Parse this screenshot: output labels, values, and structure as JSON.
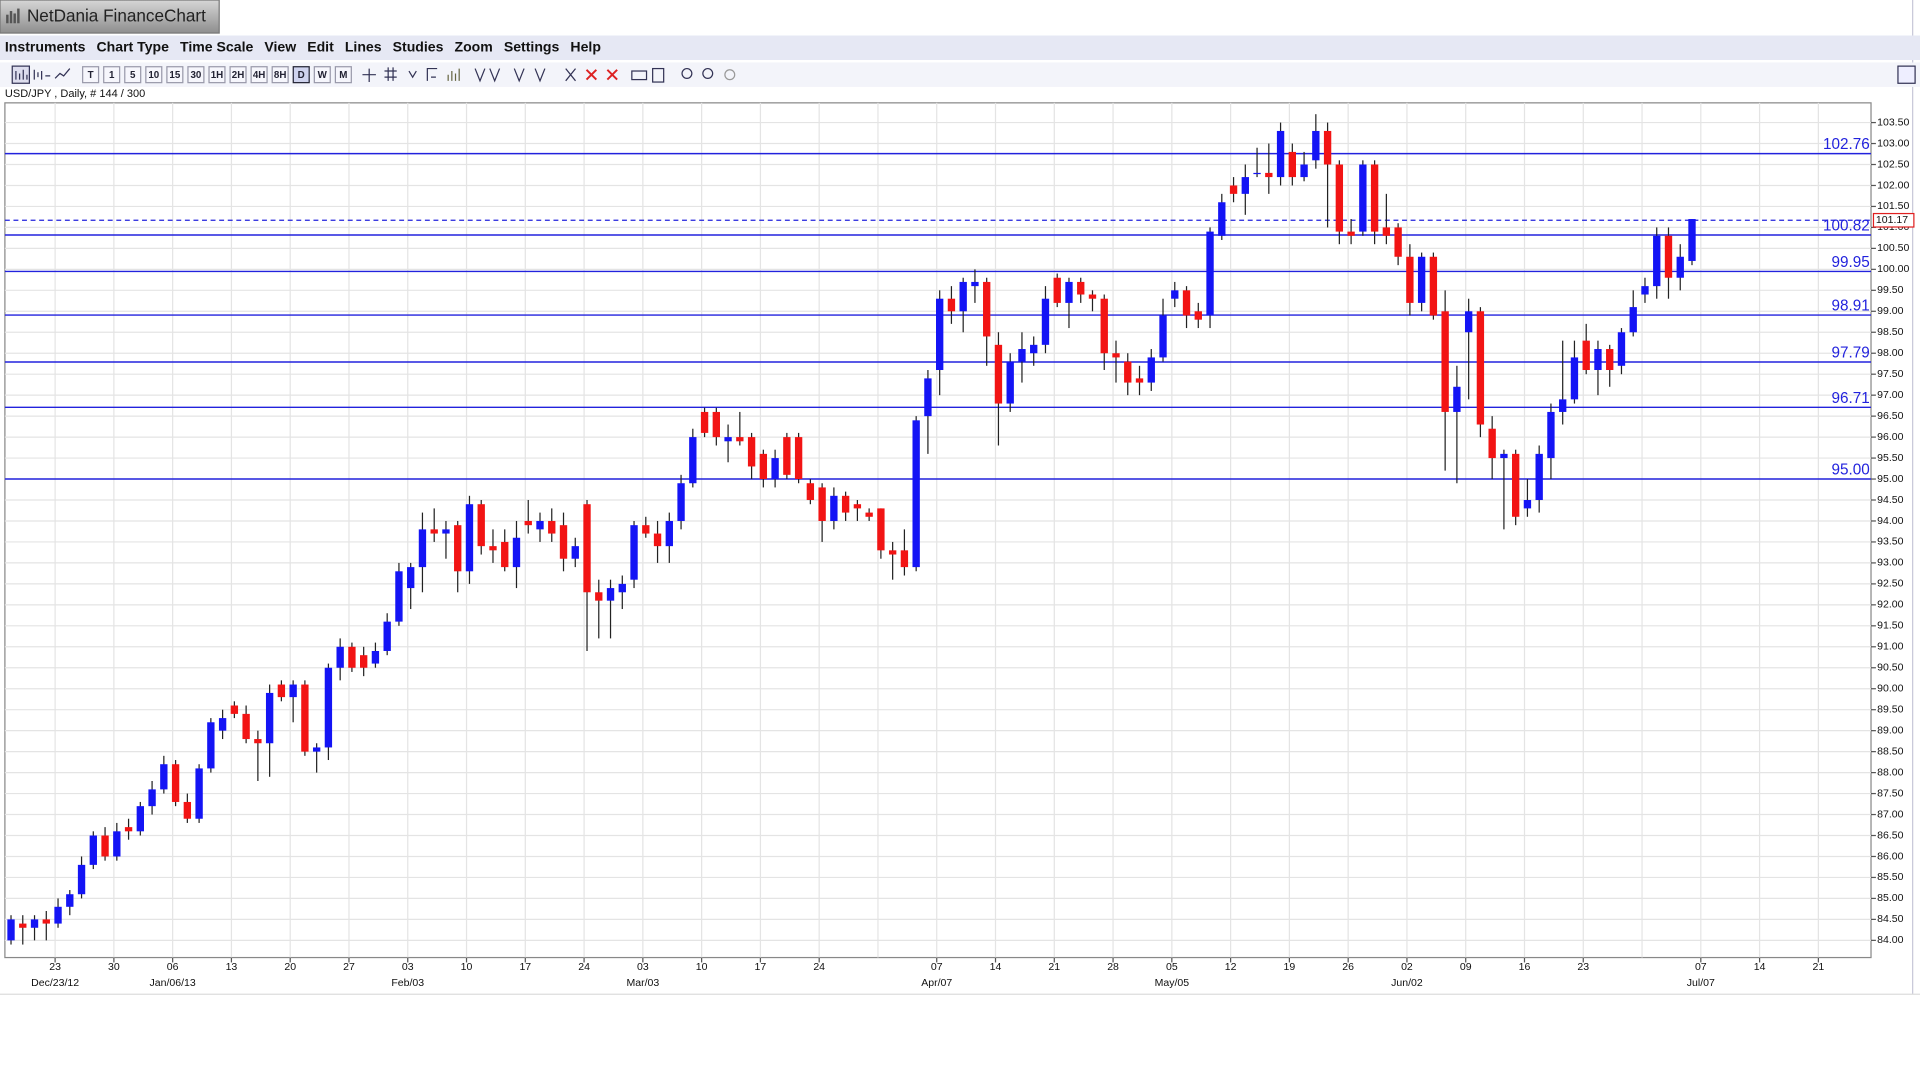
{
  "window": {
    "title": "NetDania FinanceChart",
    "menu": [
      "Instruments",
      "Chart Type",
      "Time Scale",
      "View",
      "Edit",
      "Lines",
      "Studies",
      "Zoom",
      "Settings",
      "Help"
    ],
    "timescales": [
      "T",
      "1",
      "5",
      "10",
      "15",
      "30",
      "1H",
      "2H",
      "4H",
      "8H",
      "D",
      "W",
      "M"
    ],
    "selected_timescale": "D"
  },
  "chart_data": {
    "type": "candlestick",
    "info": "USD/JPY , Daily, # 144 / 300",
    "up_color": "#1414f5",
    "down_color": "#f21414",
    "grid": true,
    "ylim": [
      83.59,
      103.97
    ],
    "yticks": [
      {
        "value": 84,
        "label": "84.00"
      },
      {
        "value": 84.5,
        "label": "84.50"
      },
      {
        "value": 85,
        "label": "85.00"
      },
      {
        "value": 85.5,
        "label": "85.50"
      },
      {
        "value": 86,
        "label": "86.00"
      },
      {
        "value": 86.5,
        "label": "86.50"
      },
      {
        "value": 87,
        "label": "87.00"
      },
      {
        "value": 87.5,
        "label": "87.50"
      },
      {
        "value": 88,
        "label": "88.00"
      },
      {
        "value": 88.5,
        "label": "88.50"
      },
      {
        "value": 89,
        "label": "89.00"
      },
      {
        "value": 89.5,
        "label": "89.50"
      },
      {
        "value": 90,
        "label": "90.00"
      },
      {
        "value": 90.5,
        "label": "90.50"
      },
      {
        "value": 91,
        "label": "91.00"
      },
      {
        "value": 91.5,
        "label": "91.50"
      },
      {
        "value": 92,
        "label": "92.00"
      },
      {
        "value": 92.5,
        "label": "92.50"
      },
      {
        "value": 93,
        "label": "93.00"
      },
      {
        "value": 93.5,
        "label": "93.50"
      },
      {
        "value": 94,
        "label": "94.00"
      },
      {
        "value": 94.5,
        "label": "94.50"
      },
      {
        "value": 95,
        "label": "95.00"
      },
      {
        "value": 95.5,
        "label": "95.50"
      },
      {
        "value": 96,
        "label": "96.00"
      },
      {
        "value": 96.5,
        "label": "96.50"
      },
      {
        "value": 97,
        "label": "97.00"
      },
      {
        "value": 97.5,
        "label": "97.50"
      },
      {
        "value": 98,
        "label": "98.00"
      },
      {
        "value": 98.5,
        "label": "98.50"
      },
      {
        "value": 99,
        "label": "99.00"
      },
      {
        "value": 99.5,
        "label": "99.50"
      },
      {
        "value": 100,
        "label": "100.00"
      },
      {
        "value": 100.5,
        "label": "100.50"
      },
      {
        "value": 101,
        "label": "101.00"
      },
      {
        "value": 101.5,
        "label": "101.50"
      },
      {
        "value": 102,
        "label": "102.00"
      },
      {
        "value": 102.5,
        "label": "102.50"
      },
      {
        "value": 103,
        "label": "103.00"
      },
      {
        "value": 103.5,
        "label": "103.50"
      }
    ],
    "week_labels": [
      "23",
      "30",
      "06",
      "13",
      "20",
      "27",
      "03",
      "10",
      "17",
      "24",
      "03",
      "10",
      "17",
      "24",
      null,
      "07",
      "14",
      "21",
      "28",
      "05",
      "12",
      "19",
      "26",
      "02",
      "09",
      "16",
      "23",
      null,
      "07",
      "14",
      "21"
    ],
    "month_labels": [
      "Dec/23/12",
      null,
      "Jan/06/13",
      null,
      null,
      null,
      "Feb/03",
      null,
      null,
      null,
      "Mar/03",
      null,
      null,
      null,
      null,
      "Apr/07",
      null,
      null,
      null,
      "May/05",
      null,
      null,
      null,
      "Jun/02",
      null,
      null,
      null,
      null,
      "Jul/07",
      null,
      null
    ],
    "levels": [
      102.76,
      100.82,
      99.95,
      98.91,
      97.79,
      96.71,
      {
        "value": 95,
        "label": "95.00"
      }
    ],
    "level_color": "#2222dd",
    "last_price": 101.17,
    "last_price_color": "#e02020",
    "open": [
      84.0,
      84.4,
      84.3,
      84.5,
      84.4,
      84.8,
      85.1,
      85.8,
      86.5,
      86.0,
      86.7,
      86.6,
      87.2,
      87.6,
      88.2,
      87.3,
      86.9,
      88.1,
      89.0,
      89.6,
      89.4,
      88.8,
      88.7,
      90.1,
      89.8,
      90.1,
      88.5,
      88.6,
      90.5,
      91.0,
      90.8,
      90.6,
      90.9,
      91.6,
      92.4,
      92.9,
      93.8,
      93.7,
      93.9,
      92.8,
      94.4,
      93.4,
      93.5,
      92.9,
      94.0,
      93.8,
      94.0,
      93.9,
      93.1,
      94.4,
      92.3,
      92.1,
      92.3,
      92.6,
      93.9,
      93.7,
      93.4,
      94.0,
      94.9,
      96.6,
      96.6,
      95.9,
      96.0,
      96.0,
      95.6,
      95.0,
      96.0,
      96.0,
      94.9,
      94.8,
      94.0,
      94.6,
      94.4,
      94.2,
      94.3,
      93.3,
      93.3,
      92.9,
      96.5,
      97.6,
      99.3,
      99.0,
      99.6,
      99.7,
      98.2,
      96.8,
      97.8,
      98.0,
      98.2,
      99.8,
      99.2,
      99.7,
      99.4,
      99.3,
      98.0,
      97.8,
      97.4,
      97.3,
      97.9,
      99.3,
      99.5,
      99.0,
      98.9,
      100.8,
      102.0,
      101.8,
      102.3,
      102.3,
      102.2,
      102.8,
      102.2,
      102.6,
      103.3,
      102.5,
      100.9,
      100.9,
      102.5,
      101.0,
      101.0,
      100.3,
      99.2,
      100.3,
      99.0,
      96.6,
      98.5,
      99.0,
      96.2,
      95.5,
      95.6,
      94.3,
      94.5,
      95.5,
      96.6,
      96.9,
      98.3,
      97.6,
      98.1,
      97.7,
      98.5,
      99.4,
      99.6,
      100.8,
      99.8,
      100.2
    ],
    "high": [
      84.6,
      84.6,
      84.6,
      84.7,
      85.0,
      85.2,
      86.0,
      86.6,
      86.7,
      86.8,
      86.9,
      87.3,
      87.8,
      88.4,
      88.3,
      87.5,
      88.2,
      89.3,
      89.5,
      89.7,
      89.6,
      89.0,
      90.1,
      90.2,
      90.2,
      90.2,
      88.7,
      90.6,
      91.2,
      91.1,
      91.0,
      91.1,
      91.8,
      93.0,
      93.0,
      94.2,
      94.3,
      94.0,
      94.0,
      94.6,
      94.5,
      93.8,
      93.8,
      94.0,
      94.5,
      94.2,
      94.3,
      94.2,
      93.6,
      94.5,
      92.6,
      92.6,
      92.7,
      94.0,
      94.1,
      94.0,
      94.2,
      95.1,
      96.2,
      96.7,
      96.7,
      96.3,
      96.6,
      96.1,
      95.7,
      95.7,
      96.1,
      96.1,
      95.0,
      94.9,
      94.8,
      94.7,
      94.5,
      94.3,
      94.3,
      93.5,
      93.8,
      96.5,
      97.6,
      99.5,
      99.6,
      99.8,
      100.0,
      99.8,
      98.5,
      98.0,
      98.5,
      98.4,
      99.6,
      99.9,
      99.8,
      99.8,
      99.5,
      99.4,
      98.3,
      98.0,
      97.7,
      98.1,
      99.3,
      99.7,
      99.6,
      99.2,
      101.0,
      101.8,
      102.2,
      102.5,
      102.9,
      103.0,
      103.5,
      103.0,
      102.8,
      103.7,
      103.5,
      102.6,
      101.2,
      102.6,
      102.6,
      101.8,
      101.1,
      100.6,
      100.4,
      100.4,
      99.5,
      97.7,
      99.3,
      99.1,
      96.5,
      95.7,
      95.7,
      95.0,
      95.8,
      96.8,
      98.3,
      98.3,
      98.7,
      98.3,
      98.2,
      98.6,
      99.5,
      99.8,
      101.0,
      101.0,
      100.6,
      101.2
    ],
    "low": [
      83.9,
      83.9,
      84.0,
      84.0,
      84.3,
      84.6,
      85.0,
      85.7,
      85.9,
      85.9,
      86.4,
      86.5,
      87.0,
      87.5,
      87.2,
      86.8,
      86.8,
      88.0,
      88.8,
      89.3,
      88.7,
      87.8,
      87.9,
      89.7,
      89.2,
      88.4,
      88.0,
      88.3,
      90.2,
      90.4,
      90.3,
      90.5,
      90.8,
      91.5,
      91.9,
      92.3,
      93.5,
      93.1,
      92.3,
      92.5,
      93.2,
      93.0,
      92.8,
      92.4,
      93.7,
      93.5,
      93.5,
      92.8,
      92.9,
      90.9,
      91.2,
      91.2,
      91.9,
      92.4,
      93.6,
      93.0,
      93.0,
      93.8,
      94.8,
      96.0,
      95.8,
      95.4,
      95.8,
      95.0,
      94.8,
      94.8,
      95.0,
      94.9,
      94.4,
      93.5,
      93.8,
      94.0,
      94.0,
      94.0,
      93.1,
      92.6,
      92.7,
      92.8,
      95.6,
      97.0,
      98.7,
      98.5,
      99.2,
      97.7,
      95.8,
      96.6,
      97.3,
      97.7,
      98.0,
      99.1,
      98.6,
      99.2,
      99.0,
      97.6,
      97.3,
      97.0,
      97.0,
      97.1,
      97.8,
      99.1,
      98.6,
      98.6,
      98.6,
      100.7,
      101.6,
      101.3,
      102.2,
      101.8,
      102.0,
      102.0,
      102.1,
      102.4,
      101.0,
      100.6,
      100.6,
      100.8,
      100.6,
      100.6,
      100.1,
      98.9,
      99.0,
      98.8,
      95.2,
      94.9,
      96.9,
      96.0,
      95.0,
      93.8,
      93.9,
      94.1,
      94.2,
      95.0,
      96.3,
      96.8,
      97.5,
      97.0,
      97.2,
      97.5,
      98.4,
      99.2,
      99.3,
      99.3,
      99.5,
      100.1
    ],
    "close": [
      84.5,
      84.3,
      84.5,
      84.4,
      84.8,
      85.1,
      85.8,
      86.5,
      86.0,
      86.6,
      86.6,
      87.2,
      87.6,
      88.2,
      87.3,
      86.9,
      88.1,
      89.2,
      89.3,
      89.4,
      88.8,
      88.7,
      89.9,
      89.8,
      90.1,
      88.5,
      88.6,
      90.5,
      91.0,
      90.5,
      90.5,
      90.9,
      91.6,
      92.8,
      92.9,
      93.8,
      93.7,
      93.8,
      92.8,
      94.4,
      93.4,
      93.3,
      92.9,
      93.6,
      93.9,
      94.0,
      93.7,
      93.1,
      93.4,
      92.3,
      92.1,
      92.4,
      92.5,
      93.9,
      93.7,
      93.4,
      94.0,
      94.9,
      96.0,
      96.1,
      96.0,
      96.0,
      95.9,
      95.3,
      95.0,
      95.5,
      95.1,
      95.0,
      94.5,
      94.0,
      94.6,
      94.2,
      94.3,
      94.1,
      93.3,
      93.2,
      92.9,
      96.4,
      97.4,
      99.3,
      99.0,
      99.7,
      99.7,
      98.4,
      96.8,
      97.8,
      98.1,
      98.2,
      99.3,
      99.2,
      99.7,
      99.4,
      99.3,
      98.0,
      97.9,
      97.3,
      97.3,
      97.9,
      98.9,
      99.5,
      98.9,
      98.8,
      100.9,
      101.6,
      101.8,
      102.2,
      102.3,
      102.2,
      103.3,
      102.2,
      102.5,
      103.3,
      102.5,
      100.9,
      100.8,
      102.5,
      100.9,
      100.8,
      100.3,
      99.2,
      100.3,
      98.9,
      96.6,
      97.2,
      99.0,
      96.3,
      95.5,
      95.6,
      94.1,
      94.5,
      95.6,
      96.6,
      96.9,
      97.9,
      97.6,
      98.1,
      97.6,
      98.5,
      99.1,
      99.6,
      100.8,
      99.8,
      100.3,
      101.2
    ]
  }
}
